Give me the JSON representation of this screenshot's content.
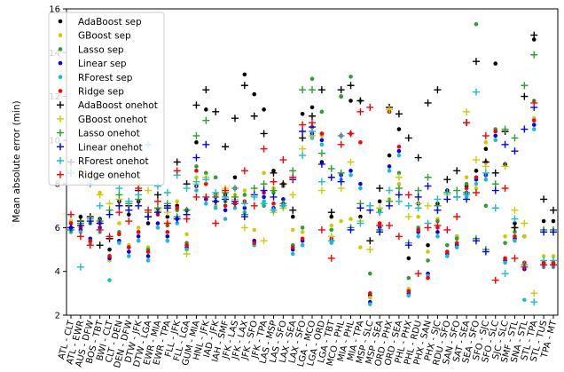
{
  "chart_data": {
    "type": "scatter",
    "title": "",
    "xlabel": "",
    "ylabel": "Mean absolute error (min)",
    "ylim": [
      2,
      16
    ],
    "yticks": [
      2,
      4,
      6,
      8,
      10,
      12,
      14,
      16
    ],
    "grid": false,
    "legend_position": "top-left",
    "categories": [
      "ATL - CLT",
      "ATL - EWR",
      "AUS - DFW",
      "BOS - TBT",
      "BWI - CLT",
      "CLT - DEN",
      "DEN - DFW",
      "DTW - JFK",
      "DTW - LGA",
      "EWR - MIA",
      "EWR - TPA",
      "FLL - JFK",
      "FLL - LGA",
      "GUM - MIA",
      "HNL - JFK",
      "IAD - JFK",
      "IAH - SMF",
      "JFK - LAS",
      "JFK - LAX",
      "JFK - SFO",
      "JFK - TPA",
      "LAS - MSP",
      "LAS - SFO",
      "LAX - SEA",
      "LAX - SFO",
      "LGA - MCO",
      "LGA - ORD",
      "LGA - TBT",
      "MCO - PHL",
      "MIA - PHL",
      "MIA - TPA",
      "MSP - SLC",
      "MSP - SEA",
      "ORD - PHX",
      "ORD - SEA",
      "PHL - PHX",
      "PHL - RDU",
      "PHX - SAN",
      "PHX - SJC",
      "RDU - SFO",
      "SAN - SFO",
      "SAT - SEA",
      "SEA - SFO",
      "SFO - SJC",
      "SFO - SLC",
      "SJC - SLC",
      "SMF - STL",
      "SNA - STL",
      "STL - TPA",
      "STL - TUS",
      "TPA - MT"
    ],
    "series": [
      {
        "name": "AdaBoost sep",
        "color": "#000000",
        "marker": "dot",
        "values": [
          6.0,
          6.5,
          5.3,
          6.4,
          5.0,
          7.2,
          6.6,
          7.2,
          6.2,
          6.8,
          6.5,
          7.0,
          6.8,
          9.9,
          11.4,
          7.5,
          7.5,
          8.3,
          13.0,
          12.1,
          11.4,
          8.6,
          7.1,
          6.5,
          11.2,
          11.5,
          9.0,
          6.5,
          12.0,
          11.8,
          6.5,
          2.9,
          7.2,
          9.3,
          10.5,
          4.6,
          7.1,
          5.2,
          7.1,
          7.7,
          5.6,
          7.9,
          8.6,
          9.6,
          13.5,
          8.9,
          6.2,
          5.6,
          14.6,
          6.3,
          6.3
        ]
      },
      {
        "name": "GBoost sep",
        "color": "#cccc00",
        "marker": "dot",
        "values": [
          6.3,
          6.1,
          5.3,
          7.6,
          4.5,
          6.2,
          5.2,
          6.0,
          5.1,
          6.7,
          6.2,
          7.2,
          5.7,
          8.3,
          8.0,
          7.0,
          7.3,
          7.5,
          7.7,
          5.9,
          8.5,
          7.8,
          8.0,
          5.9,
          5.8,
          10.2,
          10.2,
          6.1,
          6.3,
          6.4,
          5.1,
          2.8,
          6.7,
          7.3,
          8.0,
          3.2,
          6.5,
          4.9,
          6.4,
          4.9,
          5.6,
          8.3,
          7.8,
          9.9,
          10.2,
          5.6,
          6.0,
          5.6,
          11.0,
          4.7,
          4.7
        ]
      },
      {
        "name": "Lasso sep",
        "color": "#2ca02c",
        "marker": "dot",
        "values": [
          6.2,
          6.0,
          6.2,
          6.3,
          4.7,
          5.8,
          5.1,
          5.8,
          5.0,
          6.7,
          6.1,
          6.8,
          5.3,
          8.8,
          8.5,
          8.3,
          7.2,
          7.8,
          7.5,
          5.2,
          7.0,
          7.6,
          7.9,
          5.2,
          6.0,
          12.8,
          11.3,
          5.9,
          12.0,
          12.9,
          11.8,
          3.9,
          6.8,
          11.3,
          8.5,
          3.7,
          6.0,
          4.5,
          6.3,
          5.2,
          5.5,
          8.0,
          15.3,
          7.0,
          10.5,
          5.3,
          5.8,
          4.3,
          11.8,
          4.4,
          4.4
        ]
      },
      {
        "name": "Linear sep",
        "color": "#0000ff",
        "marker": "dot",
        "values": [
          5.9,
          5.9,
          5.5,
          6.0,
          4.6,
          5.4,
          4.9,
          5.6,
          4.7,
          6.2,
          5.6,
          6.4,
          5.1,
          7.9,
          7.3,
          7.2,
          6.8,
          7.1,
          6.9,
          5.4,
          7.4,
          6.9,
          7.3,
          5.0,
          5.4,
          10.3,
          10.0,
          5.4,
          8.4,
          8.6,
          8.0,
          2.6,
          6.0,
          8.8,
          9.5,
          3.0,
          5.8,
          3.9,
          5.8,
          4.8,
          5.2,
          7.6,
          8.2,
          8.4,
          10.2,
          4.5,
          5.5,
          4.1,
          10.7,
          4.3,
          4.3
        ]
      },
      {
        "name": "RForest sep",
        "color": "#17becf",
        "marker": "dot",
        "values": [
          5.8,
          5.8,
          5.3,
          5.8,
          3.6,
          5.3,
          4.7,
          5.4,
          4.5,
          6.0,
          5.4,
          6.2,
          5.0,
          7.7,
          7.1,
          6.9,
          6.4,
          6.9,
          6.7,
          5.2,
          7.2,
          6.8,
          7.0,
          4.8,
          5.2,
          10.1,
          9.8,
          5.3,
          8.2,
          8.4,
          7.8,
          2.5,
          5.9,
          8.6,
          9.3,
          2.9,
          5.6,
          3.8,
          5.6,
          4.7,
          5.1,
          7.4,
          8.0,
          8.2,
          10.0,
          4.4,
          5.4,
          2.7,
          10.5,
          4.2,
          4.2
        ]
      },
      {
        "name": "Ridge sep",
        "color": "#ff0000",
        "marker": "dot",
        "values": [
          6.2,
          6.0,
          5.4,
          6.2,
          4.7,
          5.7,
          5.1,
          5.8,
          4.9,
          6.6,
          5.8,
          6.9,
          5.2,
          8.6,
          8.0,
          7.4,
          7.0,
          7.8,
          7.2,
          5.3,
          7.6,
          7.1,
          8.0,
          5.1,
          5.5,
          10.6,
          10.3,
          5.5,
          10.2,
          10.3,
          9.9,
          3.0,
          6.2,
          11.3,
          9.7,
          3.1,
          5.9,
          3.7,
          6.0,
          4.9,
          5.3,
          7.8,
          8.3,
          9.0,
          10.4,
          4.6,
          5.6,
          4.4,
          10.9,
          4.4,
          4.4
        ]
      },
      {
        "name": "AdaBoost onehot",
        "color": "#000000",
        "marker": "plus",
        "values": [
          9.0,
          6.3,
          6.5,
          5.2,
          5.5,
          7.0,
          7.0,
          7.7,
          6.5,
          7.5,
          7.0,
          9.0,
          8.0,
          11.6,
          12.3,
          11.3,
          9.7,
          11.0,
          12.5,
          11.1,
          10.3,
          8.5,
          8.0,
          6.8,
          10.1,
          11.1,
          12.3,
          6.7,
          12.3,
          12.5,
          11.8,
          5.4,
          7.8,
          11.5,
          11.2,
          10.1,
          9.2,
          11.7,
          12.3,
          8.2,
          8.6,
          10.8,
          13.6,
          9.0,
          8.5,
          10.4,
          6.0,
          12.0,
          14.8,
          7.3,
          6.8
        ]
      },
      {
        "name": "GBoost onehot",
        "color": "#cccc00",
        "marker": "plus",
        "values": [
          8.6,
          8.7,
          8.3,
          7.5,
          7.1,
          7.3,
          7.2,
          8.0,
          7.7,
          6.8,
          6.7,
          8.4,
          4.8,
          8.0,
          8.3,
          7.5,
          7.8,
          7.3,
          6.0,
          7.5,
          5.4,
          6.7,
          6.9,
          7.5,
          9.6,
          10.2,
          7.7,
          5.6,
          7.8,
          9.0,
          6.3,
          5.0,
          6.9,
          11.4,
          8.3,
          6.5,
          7.1,
          7.0,
          6.8,
          7.5,
          6.5,
          11.3,
          9.1,
          8.8,
          6.9,
          8.8,
          6.8,
          6.2,
          3.0,
          5.9,
          5.9
        ]
      },
      {
        "name": "Lasso onehot",
        "color": "#2ca02c",
        "marker": "plus",
        "values": [
          5.9,
          6.2,
          6.4,
          6.3,
          6.8,
          7.5,
          7.1,
          7.3,
          6.7,
          6.9,
          7.1,
          6.5,
          6.8,
          10.2,
          10.9,
          7.4,
          7.6,
          7.4,
          6.6,
          7.8,
          8.0,
          7.7,
          7.1,
          8.6,
          12.3,
          12.3,
          9.4,
          8.7,
          8.5,
          6.0,
          7.1,
          7.0,
          5.9,
          7.2,
          7.8,
          5.3,
          7.7,
          8.3,
          7.0,
          7.6,
          7.7,
          7.6,
          5.5,
          5.0,
          8.0,
          10.5,
          10.1,
          12.5,
          13.9,
          5.9,
          5.9
        ]
      },
      {
        "name": "Linear onehot",
        "color": "#0000ff",
        "marker": "plus",
        "values": [
          6.0,
          6.1,
          6.3,
          6.2,
          6.6,
          7.0,
          6.8,
          7.0,
          6.5,
          6.7,
          6.9,
          6.4,
          6.6,
          9.2,
          9.8,
          7.2,
          7.3,
          7.2,
          6.5,
          7.5,
          7.7,
          7.4,
          7.0,
          8.2,
          10.4,
          10.6,
          8.9,
          8.3,
          8.1,
          5.9,
          6.9,
          6.8,
          5.8,
          7.0,
          7.5,
          5.2,
          7.4,
          7.9,
          6.8,
          7.3,
          7.4,
          7.3,
          5.4,
          4.9,
          7.7,
          9.8,
          9.5,
          10.5,
          11.5,
          5.8,
          5.8
        ]
      },
      {
        "name": "RForest onehot",
        "color": "#17becf",
        "marker": "plus",
        "values": [
          8.5,
          4.2,
          8.0,
          7.0,
          8.4,
          7.8,
          7.2,
          7.5,
          9.8,
          7.9,
          7.6,
          8.4,
          7.8,
          8.1,
          8.2,
          7.6,
          7.4,
          7.8,
          7.1,
          7.4,
          7.1,
          6.8,
          7.0,
          8.3,
          9.3,
          10.4,
          8.1,
          5.4,
          10.2,
          10.3,
          6.2,
          7.0,
          6.7,
          7.7,
          7.2,
          7.0,
          6.9,
          6.2,
          7.3,
          7.6,
          7.4,
          7.5,
          12.2,
          8.5,
          6.9,
          3.9,
          6.4,
          4.3,
          2.6,
          4.5,
          4.5
        ]
      },
      {
        "name": "Ridge onehot",
        "color": "#ff0000",
        "marker": "plus",
        "values": [
          6.6,
          5.6,
          5.2,
          5.9,
          5.6,
          6.7,
          6.3,
          7.8,
          6.8,
          7.2,
          6.2,
          8.6,
          6.4,
          7.4,
          7.4,
          6.2,
          7.7,
          7.1,
          8.6,
          7.0,
          9.6,
          8.1,
          9.1,
          8.3,
          10.7,
          10.8,
          5.9,
          4.6,
          9.8,
          10.3,
          11.3,
          11.5,
          6.1,
          6.1,
          5.6,
          7.5,
          3.9,
          6.0,
          6.1,
          5.9,
          6.5,
          10.8,
          7.6,
          10.2,
          3.6,
          7.8,
          4.6,
          4.2,
          11.7,
          4.3,
          4.3
        ]
      }
    ]
  }
}
